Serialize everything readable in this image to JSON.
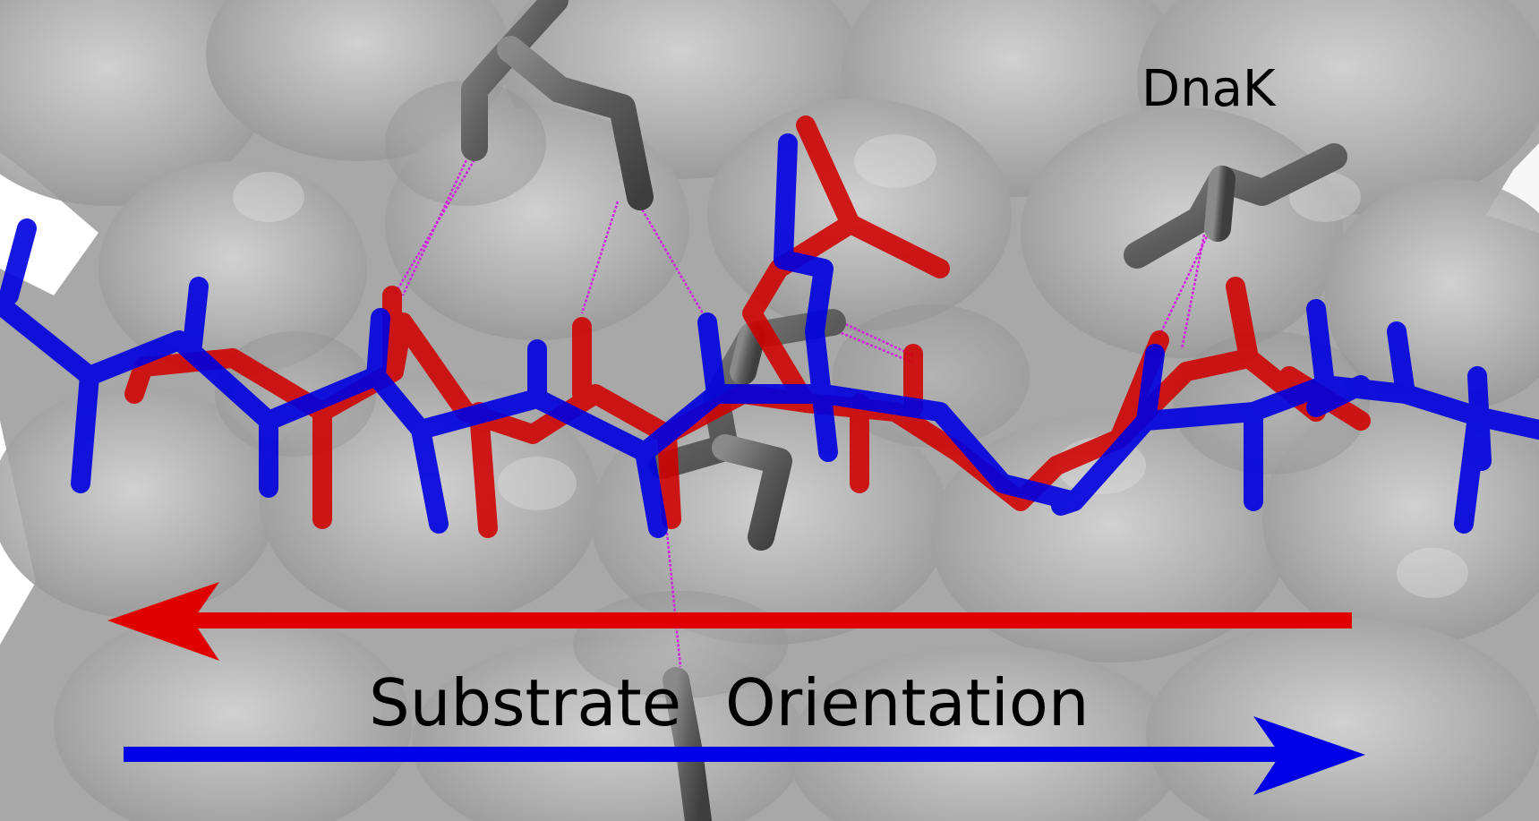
{
  "labels": {
    "protein": "DnaK",
    "orientation_word1": "Substrate",
    "orientation_word2": "Orientation"
  },
  "colors": {
    "background": "#ffffff",
    "surface": "#a9a9a9",
    "surface_highlight": "#d6d6d6",
    "dnak_residue": "#6f6f6f",
    "substrate_red": "#e00000",
    "substrate_blue": "#0000e6",
    "hbond": "#d020e0",
    "text": "#000000"
  },
  "arrows": {
    "red_direction": "left",
    "blue_direction": "right"
  }
}
